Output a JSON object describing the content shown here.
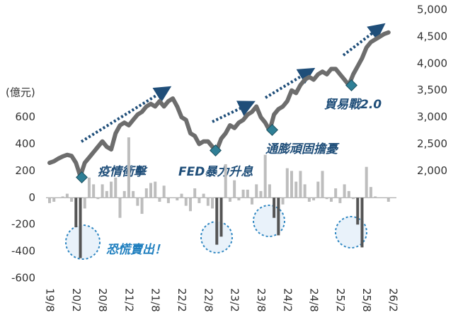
{
  "chart_data": {
    "type": "bar",
    "y_label": "(億元)",
    "annotations": [
      "疫情衝擊",
      "FED暴力升息",
      "通膨頑固擔憂",
      "貿易戰2.0",
      "恐慌賣出！"
    ],
    "categories": [
      "19/8",
      null,
      null,
      null,
      null,
      null,
      "20/2",
      null,
      null,
      null,
      null,
      null,
      "20/8",
      null,
      null,
      null,
      null,
      null,
      "21/2",
      null,
      null,
      null,
      null,
      null,
      "21/8",
      null,
      null,
      null,
      null,
      null,
      "22/2",
      null,
      null,
      null,
      null,
      null,
      "22/8",
      null,
      null,
      null,
      null,
      null,
      "23/2",
      null,
      null,
      null,
      null,
      null,
      "23/8",
      null,
      null,
      null,
      null,
      null,
      "24/2",
      null,
      null,
      null,
      null,
      null,
      "24/8",
      null,
      null,
      null,
      null,
      null,
      "25/2",
      null,
      null,
      null,
      null,
      null,
      "25/8",
      null,
      null,
      null,
      null,
      null,
      "26/2"
    ],
    "series": [
      {
        "type": "bar",
        "axis": "y",
        "colors": [
          "#bdbdbd",
          "#bdbdbd",
          "#bdbdbd",
          "#bdbdbd",
          "#bdbdbd",
          "#bdbdbd",
          "#555555",
          "#555555",
          "#bdbdbd",
          "#bdbdbd",
          "#bdbdbd",
          "#bdbdbd",
          "#bdbdbd",
          "#bdbdbd",
          "#bdbdbd",
          "#bdbdbd",
          "#bdbdbd",
          "#bdbdbd",
          "#bdbdbd",
          "#bdbdbd",
          "#bdbdbd",
          "#bdbdbd",
          "#bdbdbd",
          "#bdbdbd",
          "#bdbdbd",
          "#bdbdbd",
          "#bdbdbd",
          "#bdbdbd",
          "#bdbdbd",
          "#bdbdbd",
          "#bdbdbd",
          "#bdbdbd",
          "#bdbdbd",
          "#bdbdbd",
          "#bdbdbd",
          "#bdbdbd",
          "#bdbdbd",
          "#bdbdbd",
          "#555555",
          "#555555",
          "#bdbdbd",
          "#bdbdbd",
          "#bdbdbd",
          "#bdbdbd",
          "#bdbdbd",
          "#bdbdbd",
          "#bdbdbd",
          "#bdbdbd",
          "#bdbdbd",
          "#bdbdbd",
          "#bdbdbd",
          "#555555",
          "#555555",
          "#bdbdbd",
          "#bdbdbd",
          "#bdbdbd",
          "#bdbdbd",
          "#bdbdbd",
          "#bdbdbd",
          "#bdbdbd",
          "#bdbdbd",
          "#bdbdbd",
          "#bdbdbd",
          "#bdbdbd",
          "#bdbdbd",
          "#bdbdbd",
          "#bdbdbd",
          "#bdbdbd",
          "#bdbdbd",
          "#bdbdbd",
          "#555555",
          "#555555",
          "#bdbdbd",
          "#bdbdbd",
          "#bdbdbd",
          "#bdbdbd",
          "#bdbdbd",
          "#bdbdbd",
          "#bdbdbd"
        ],
        "values": [
          -40,
          -30,
          0,
          10,
          30,
          -30,
          -220,
          -450,
          -80,
          150,
          100,
          -10,
          100,
          50,
          120,
          150,
          -150,
          50,
          450,
          50,
          -60,
          -120,
          70,
          110,
          120,
          -30,
          90,
          -40,
          0,
          -20,
          30,
          -60,
          -100,
          70,
          -40,
          30,
          -60,
          -80,
          -350,
          -290,
          250,
          -30,
          130,
          -20,
          60,
          60,
          -50,
          100,
          50,
          320,
          100,
          -150,
          -280,
          -50,
          220,
          200,
          120,
          200,
          100,
          -30,
          -20,
          120,
          200,
          -10,
          -30,
          70,
          -40,
          100,
          50,
          -10,
          -200,
          -370,
          230,
          80,
          10,
          0,
          0,
          -30,
          null
        ]
      },
      {
        "type": "line",
        "axis": "y2",
        "color": "#6d6d6d",
        "values": [
          2150,
          2180,
          2230,
          2270,
          2300,
          2280,
          2150,
          1900,
          2150,
          2250,
          2350,
          2450,
          2550,
          2450,
          2400,
          2700,
          2850,
          2900,
          2850,
          2950,
          3050,
          3100,
          3200,
          3250,
          3200,
          3300,
          3200,
          3300,
          3350,
          3200,
          3000,
          2950,
          2700,
          2650,
          2500,
          2550,
          2550,
          2450,
          2390,
          2600,
          2700,
          2850,
          2800,
          2900,
          2950,
          3050,
          3100,
          3200,
          3000,
          2900,
          2750,
          3050,
          3150,
          3200,
          3300,
          3500,
          3450,
          3600,
          3700,
          3750,
          3700,
          3800,
          3850,
          3800,
          3900,
          3900,
          3800,
          3700,
          3600,
          3800,
          3950,
          4100,
          4300,
          4400,
          4450,
          4500,
          4550,
          4580,
          null
        ]
      }
    ],
    "ylim": [
      -600,
      1400
    ],
    "yticks": [
      -600,
      -400,
      -200,
      0,
      200,
      400,
      600
    ],
    "y2lim": [
      0,
      5000
    ],
    "y2ticks": [
      {
        "value": 2000,
        "label": "2,000"
      },
      {
        "value": 2500,
        "label": "2,500"
      },
      {
        "value": 3000,
        "label": "3,000"
      },
      {
        "value": 3500,
        "label": "3,500"
      },
      {
        "value": 4000,
        "label": "4,000"
      },
      {
        "value": 4500,
        "label": "4,500"
      },
      {
        "value": 5000,
        "label": "5,000"
      }
    ]
  }
}
